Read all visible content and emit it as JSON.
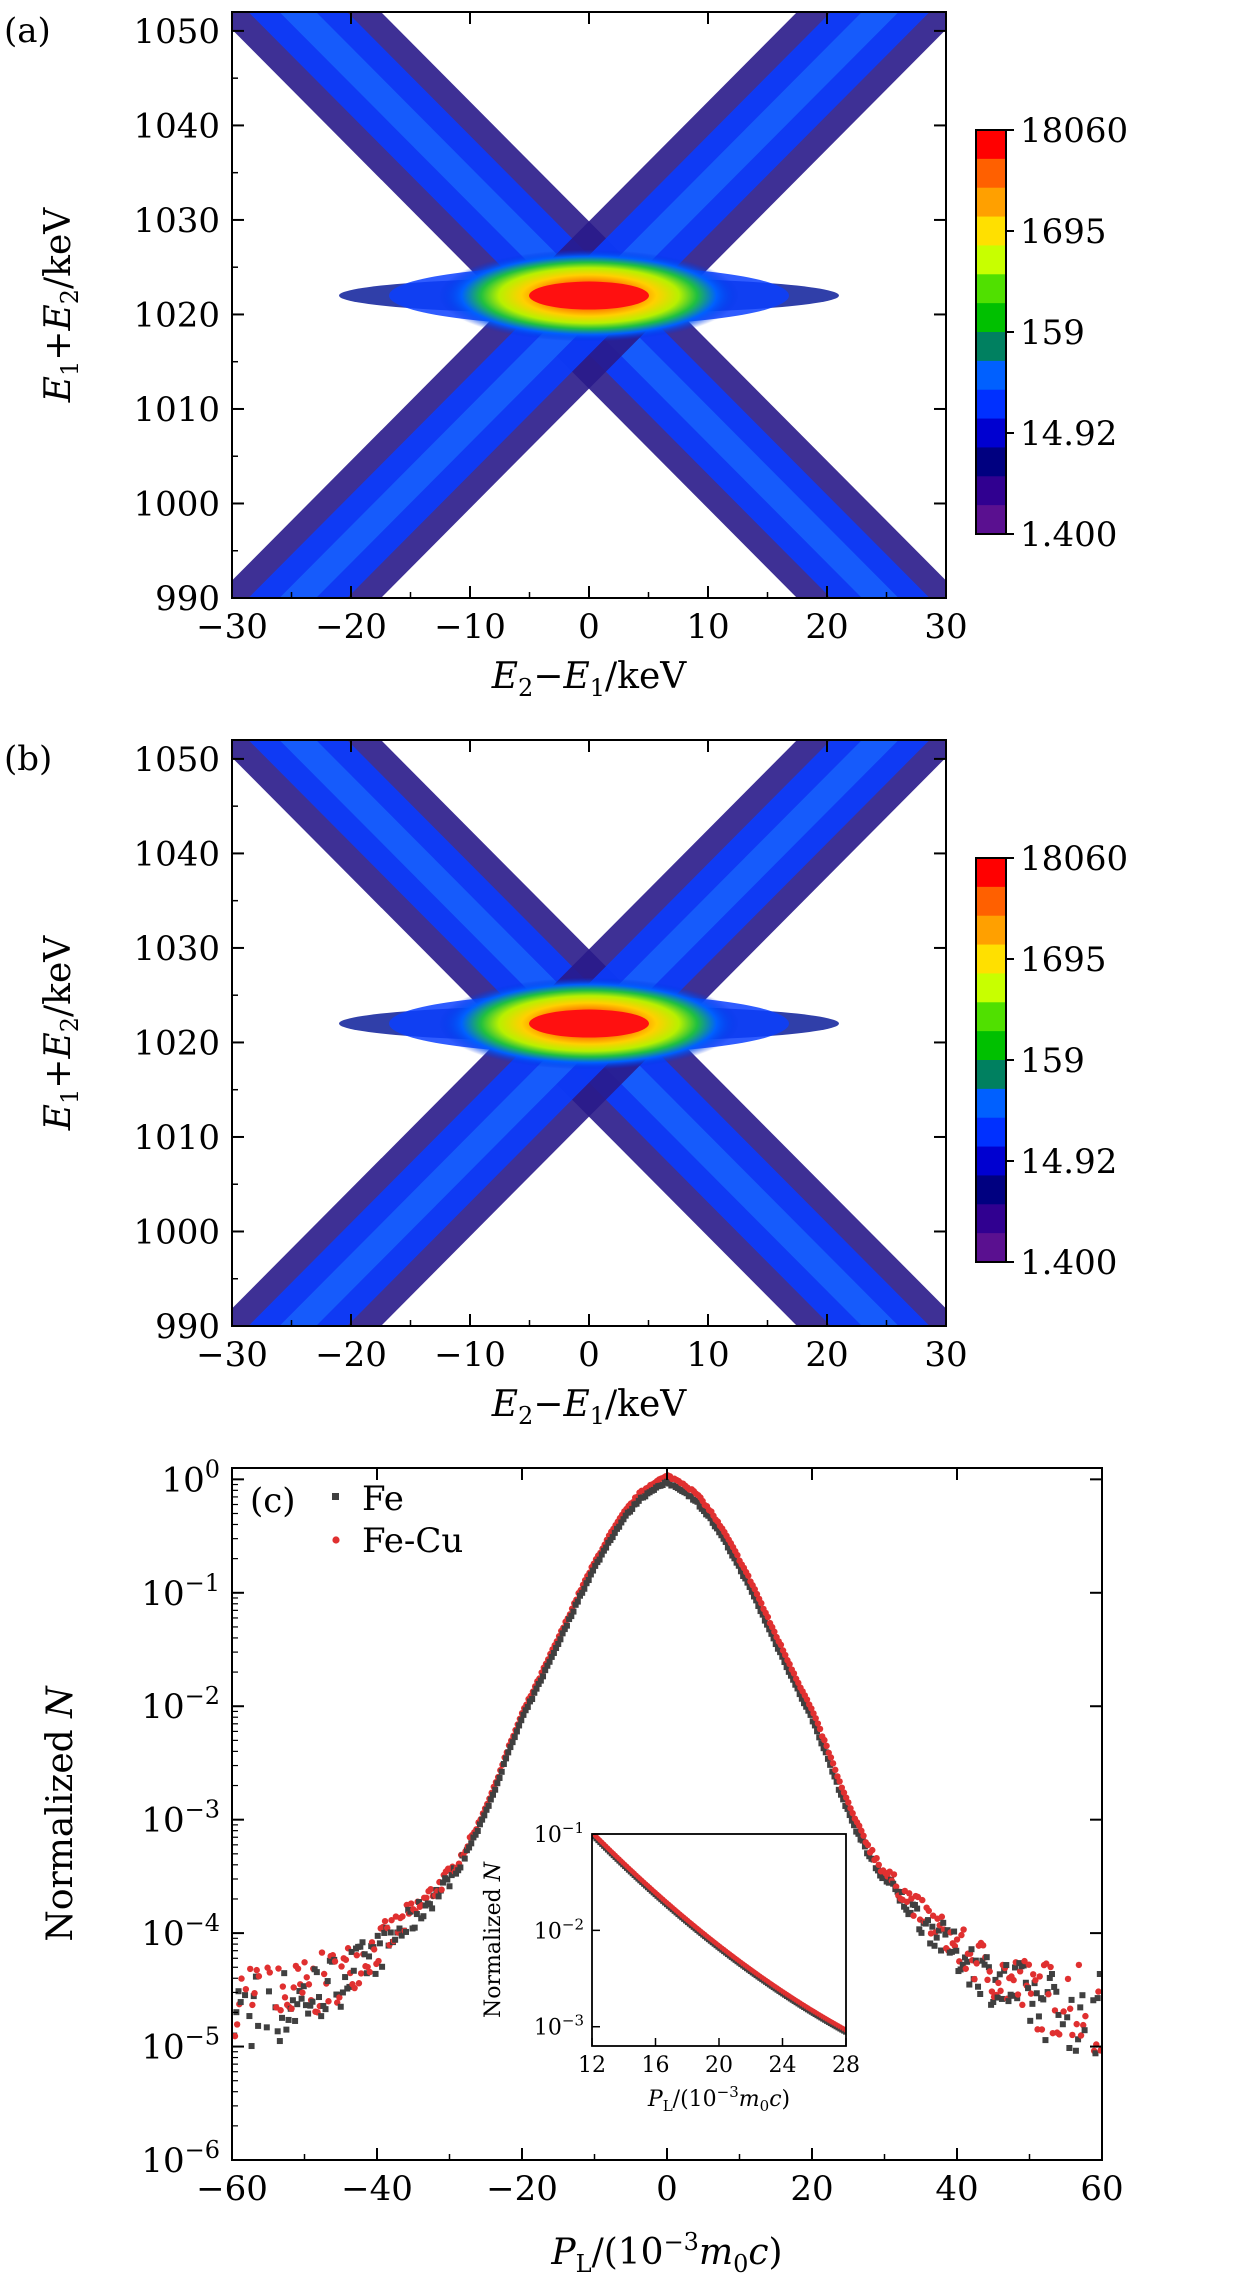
{
  "panels": {
    "a": {
      "tag": "(a)",
      "chart_data": {
        "type": "heatmap",
        "xlabel": "E2−E1/keV",
        "ylabel": "E1+E2/keV",
        "xlim": [
          -30,
          30
        ],
        "ylim": [
          990,
          1052
        ],
        "xticks": [
          "−30",
          "−20",
          "−10",
          "0",
          "10",
          "20",
          "30"
        ],
        "xtick_values": [
          -30,
          -20,
          -10,
          0,
          10,
          20,
          30
        ],
        "yticks": [
          "990",
          "1000",
          "1010",
          "1020",
          "1030",
          "1040",
          "1050"
        ],
        "ytick_values": [
          990,
          1000,
          1010,
          1020,
          1030,
          1040,
          1050
        ],
        "peak": {
          "x": 0,
          "y": 1022
        },
        "colorbar": {
          "ticks": [
            "18060",
            "1695",
            "159",
            "14.92",
            "1.400"
          ],
          "values": [
            18060,
            1695,
            159,
            14.92,
            1.4
          ],
          "scale": "log",
          "colors": [
            "#ff0000",
            "#ff6000",
            "#ffa000",
            "#ffe000",
            "#c8ff00",
            "#50e000",
            "#00c000",
            "#008060",
            "#0060ff",
            "#0030ff",
            "#0000d0",
            "#000080",
            "#300090",
            "#5a1090"
          ]
        }
      }
    },
    "b": {
      "tag": "(b)",
      "chart_data": {
        "type": "heatmap",
        "xlabel": "E2−E1/keV",
        "ylabel": "E1+E2/keV",
        "xlim": [
          -30,
          30
        ],
        "ylim": [
          990,
          1052
        ],
        "xticks": [
          "−30",
          "−20",
          "−10",
          "0",
          "10",
          "20",
          "30"
        ],
        "xtick_values": [
          -30,
          -20,
          -10,
          0,
          10,
          20,
          30
        ],
        "yticks": [
          "990",
          "1000",
          "1010",
          "1020",
          "1030",
          "1040",
          "1050"
        ],
        "ytick_values": [
          990,
          1000,
          1010,
          1020,
          1030,
          1040,
          1050
        ],
        "peak": {
          "x": 0,
          "y": 1022
        },
        "colorbar": {
          "ticks": [
            "18060",
            "1695",
            "159",
            "14.92",
            "1.400"
          ],
          "values": [
            18060,
            1695,
            159,
            14.92,
            1.4
          ],
          "scale": "log"
        }
      }
    },
    "c": {
      "tag": "(c)",
      "chart_data": {
        "type": "scatter",
        "xlabel": "PL/(10−3m0c)",
        "ylabel": "Normalized N",
        "xlim": [
          -60,
          60
        ],
        "ylim_log10": [
          -6,
          0.1
        ],
        "yscale": "log",
        "xticks": [
          "−60",
          "−40",
          "−20",
          "0",
          "20",
          "40",
          "60"
        ],
        "xtick_values": [
          -60,
          -40,
          -20,
          0,
          20,
          40,
          60
        ],
        "ytick_exponents": [
          "0",
          "−1",
          "−2",
          "−3",
          "−4",
          "−5",
          "−6"
        ],
        "ytick_values_log10": [
          0,
          -1,
          -2,
          -3,
          -4,
          -5,
          -6
        ],
        "legend_position": "top-left",
        "series": [
          {
            "name": "Fe",
            "color": "#404040",
            "marker": "square"
          },
          {
            "name": "Fe-Cu",
            "color": "#e03030",
            "marker": "circle"
          }
        ],
        "profile": {
          "x": [
            0,
            2,
            4,
            6,
            8,
            10,
            12,
            14,
            16,
            18,
            20,
            22,
            24,
            26,
            28,
            30,
            35,
            40,
            45,
            50,
            55,
            60
          ],
          "log10_y": [
            0,
            -0.06,
            -0.16,
            -0.32,
            -0.52,
            -0.75,
            -1.0,
            -1.28,
            -1.55,
            -1.82,
            -2.08,
            -2.4,
            -2.75,
            -3.05,
            -3.3,
            -3.5,
            -3.85,
            -4.15,
            -4.38,
            -4.55,
            -4.65,
            -4.7
          ]
        },
        "inset": {
          "xlabel": "PL/(10−3m0c)",
          "ylabel": "Normalized N",
          "xlim": [
            12,
            28
          ],
          "ylim_log10": [
            -3.2,
            -1
          ],
          "xticks": [
            "12",
            "16",
            "20",
            "24",
            "28"
          ],
          "xtick_values": [
            12,
            16,
            20,
            24,
            28
          ],
          "ytick_exponents": [
            "−1",
            "−2",
            "−3"
          ],
          "ytick_values_log10": [
            -1,
            -2,
            -3
          ]
        }
      }
    }
  }
}
